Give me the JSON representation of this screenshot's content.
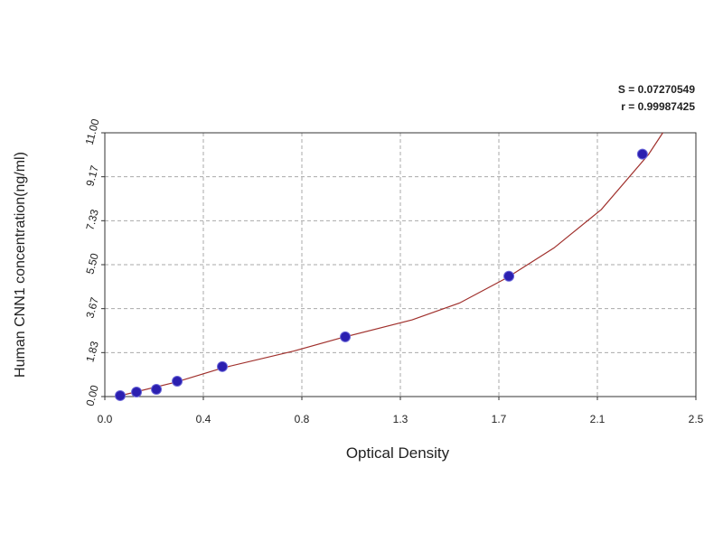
{
  "chart_data": {
    "type": "scatter",
    "xlabel": "Optical Density",
    "ylabel": "Human CNN1 concentration(ng/ml)",
    "annotations": [
      "S = 0.07270549",
      "r = 0.99987425"
    ],
    "xlim": [
      0,
      2.5
    ],
    "ylim": [
      0,
      11
    ],
    "xticks": [
      {
        "value": 0,
        "label": "0.0"
      },
      {
        "value": 0.41667,
        "label": "0.4"
      },
      {
        "value": 0.83333,
        "label": "0.8"
      },
      {
        "value": 1.25,
        "label": "1.3"
      },
      {
        "value": 1.66667,
        "label": "1.7"
      },
      {
        "value": 2.08333,
        "label": "2.1"
      },
      2.5
    ],
    "yticks": [
      {
        "value": 0,
        "label": "0.00"
      },
      {
        "value": 1.83333,
        "label": "1.83"
      },
      {
        "value": 3.66667,
        "label": "3.67"
      },
      {
        "value": 5.5,
        "label": "5.50"
      },
      {
        "value": 7.33333,
        "label": "7.33"
      },
      {
        "value": 9.16667,
        "label": "9.17"
      },
      {
        "value": 11,
        "label": "11.00"
      }
    ],
    "grid": true,
    "series": [
      {
        "type": "scatter",
        "color": "#2b1fb0",
        "x": [
          0.065,
          0.134,
          0.218,
          0.306,
          0.497,
          1.017,
          1.709,
          2.274
        ],
        "values": [
          0.04,
          0.19,
          0.3,
          0.64,
          1.25,
          2.49,
          5.02,
          10.11
        ]
      },
      {
        "type": "line",
        "color": "#a0302c",
        "x": [
          0.05,
          0.3,
          0.5,
          0.8,
          1.0,
          1.3,
          1.5,
          1.7,
          1.9,
          2.1,
          2.3,
          2.36
        ],
        "values": [
          0.0,
          0.6,
          1.2,
          1.9,
          2.45,
          3.2,
          3.9,
          4.95,
          6.2,
          7.8,
          10.1,
          11.0
        ]
      }
    ]
  }
}
